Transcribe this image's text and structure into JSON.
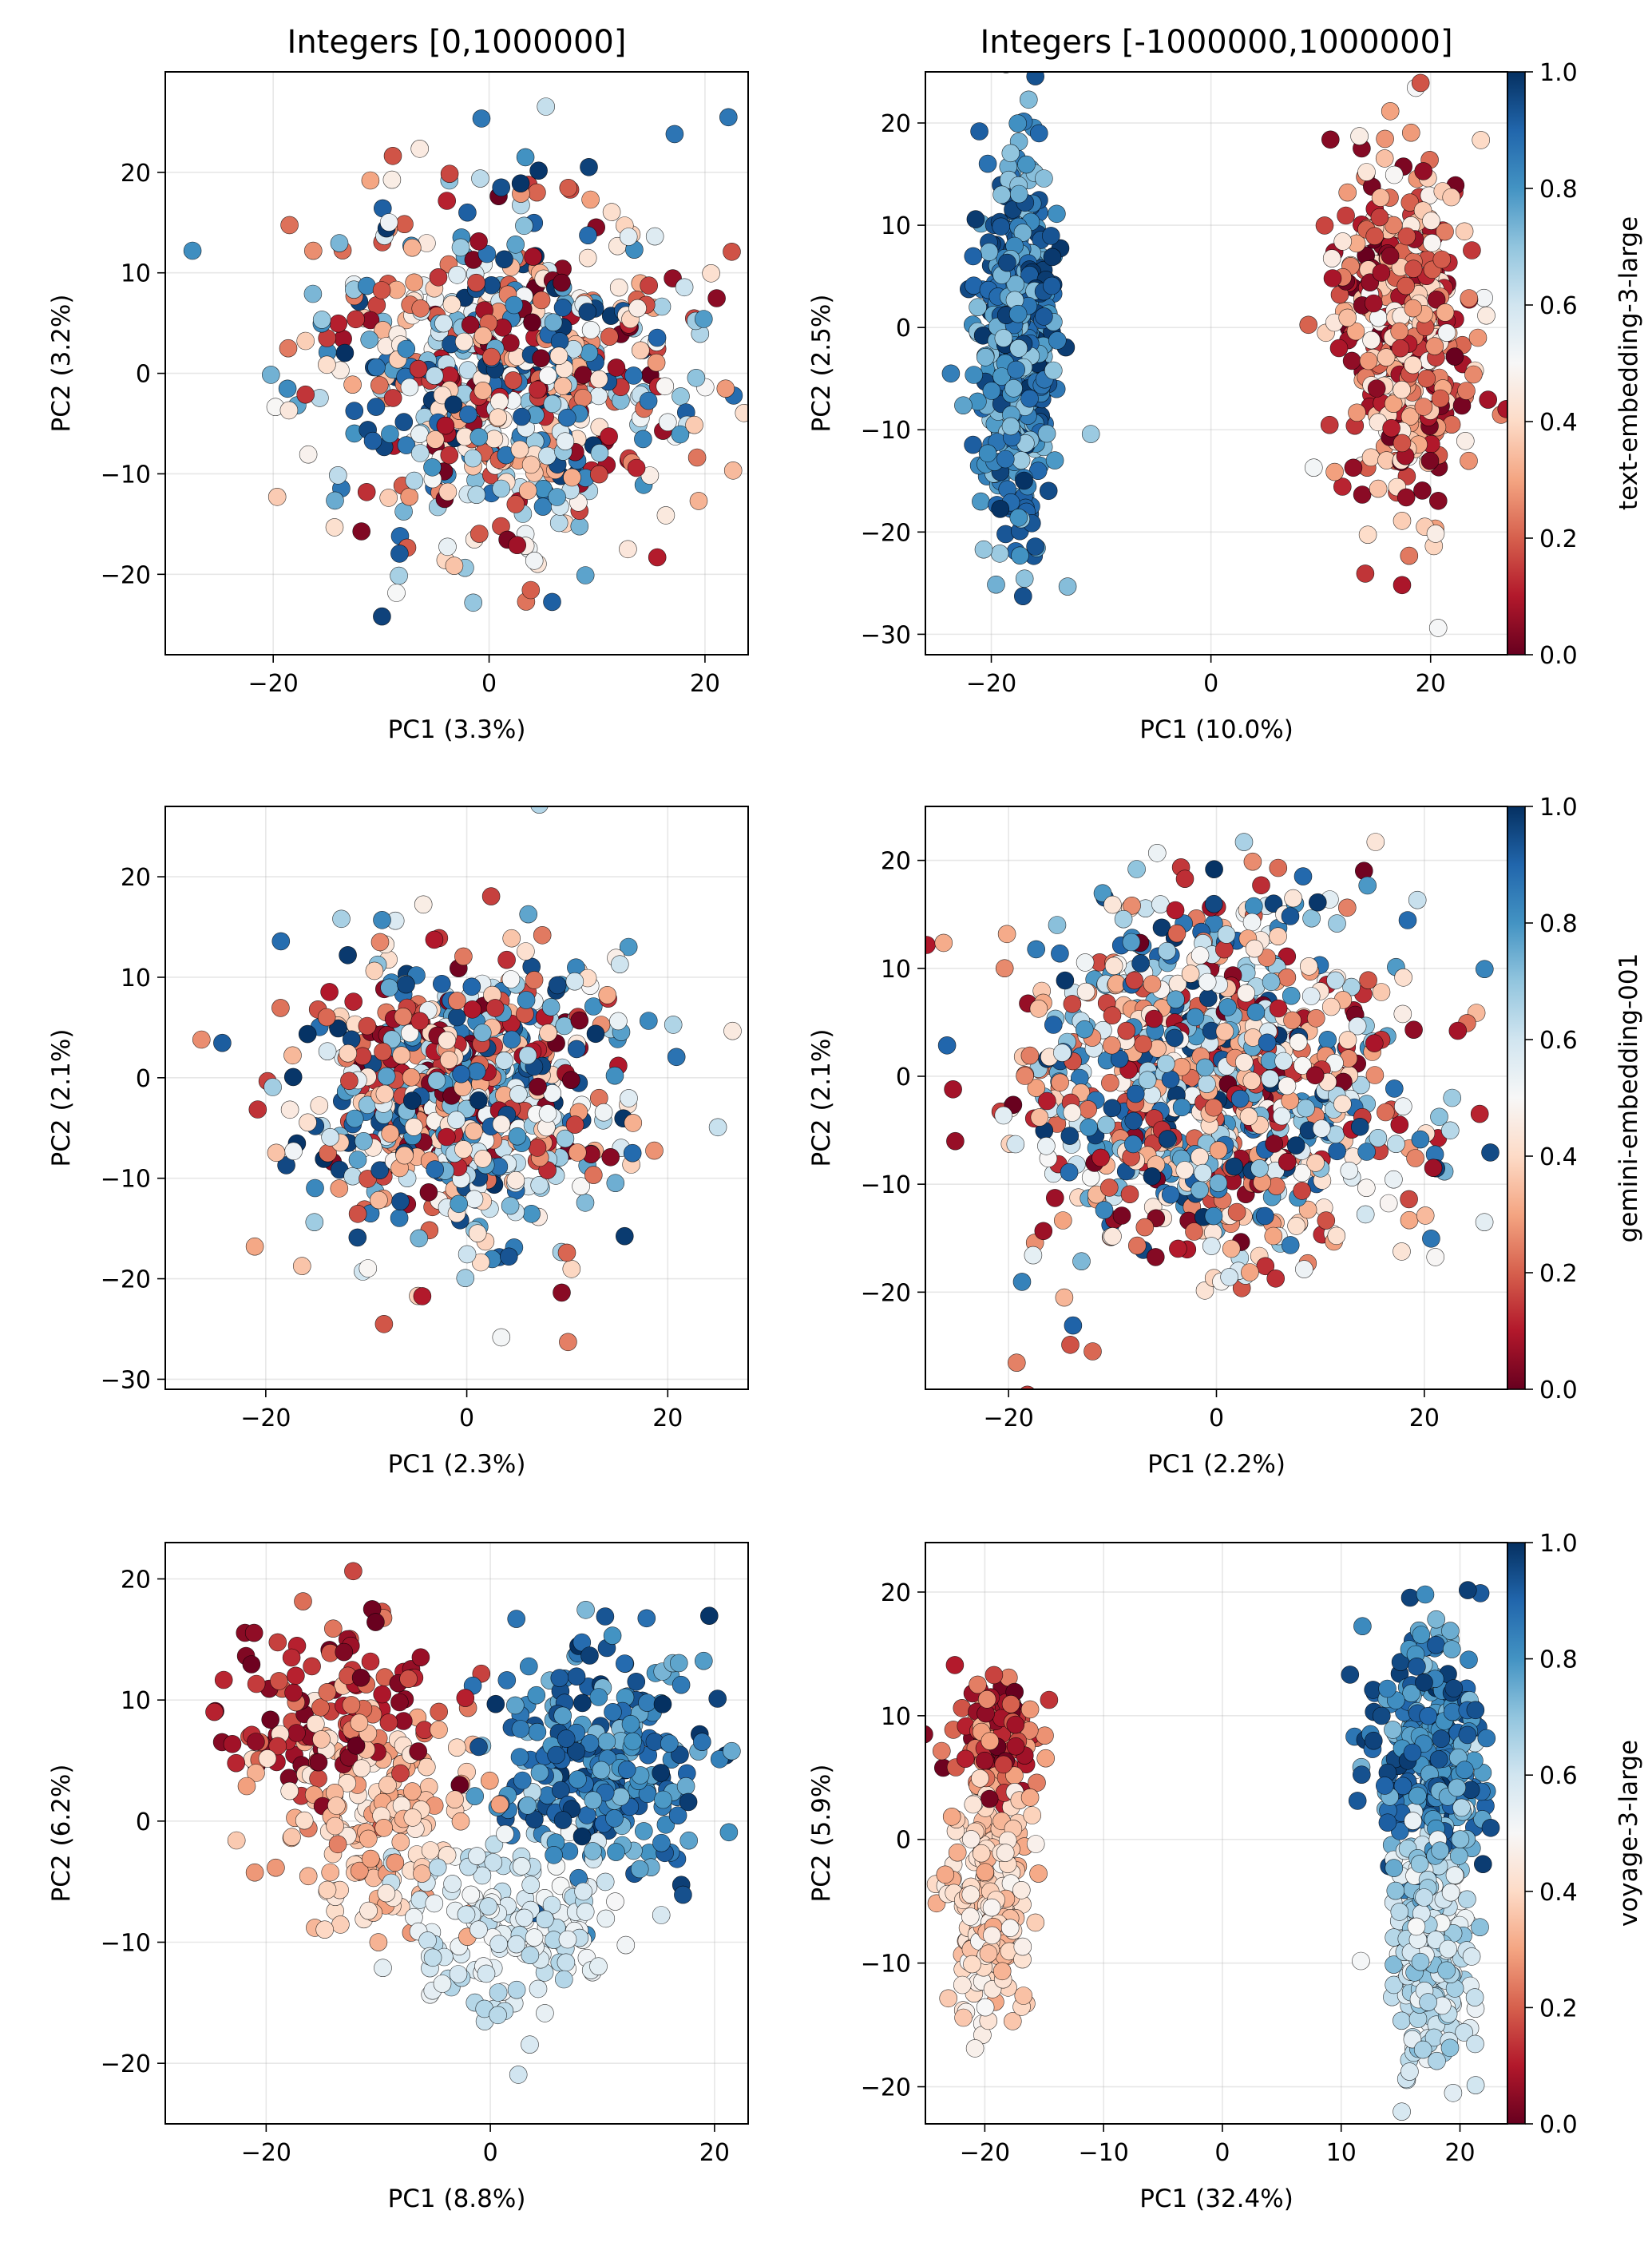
{
  "figure": {
    "background": "#ffffff"
  },
  "colormap": {
    "name": "RdBu",
    "stops": [
      "#67001f",
      "#b2182b",
      "#d6604d",
      "#f4a582",
      "#fddbc7",
      "#f7f7f7",
      "#d1e5f0",
      "#92c5de",
      "#4393c3",
      "#2166ac",
      "#053061"
    ]
  },
  "colorbar_ticks": [
    "0.0",
    "0.2",
    "0.4",
    "0.6",
    "0.8",
    "1.0"
  ],
  "chart_data": [
    {
      "type": "scatter",
      "row": 0,
      "col": 0,
      "title": "Integers [0,1000000]",
      "xlabel": "PC1 (3.3%)",
      "ylabel": "PC2 (3.2%)",
      "xlim": [
        -30,
        24
      ],
      "ylim": [
        -28,
        30
      ],
      "xticks": [
        -20,
        0,
        20
      ],
      "yticks": [
        -20,
        -10,
        0,
        10,
        20
      ],
      "grid": true,
      "colorbar": false,
      "sample_count": 650,
      "clusters": [
        {
          "cx": 2,
          "cy": 0,
          "sx": 8.5,
          "sy": 8.5,
          "c0": 0.0,
          "c1": 1.0,
          "count": 650,
          "seed": 11
        }
      ]
    },
    {
      "type": "scatter",
      "row": 0,
      "col": 1,
      "title": "Integers [-1000000,1000000]",
      "xlabel": "PC1 (10.0%)",
      "ylabel": "PC2 (2.5%)",
      "xlim": [
        -26,
        27
      ],
      "ylim": [
        -32,
        25
      ],
      "xticks": [
        -20,
        0,
        20
      ],
      "yticks": [
        -30,
        -20,
        -10,
        0,
        10,
        20
      ],
      "grid": true,
      "colorbar": true,
      "colorbar_label": "text-embedding-3-large",
      "sample_count": 900,
      "clusters": [
        {
          "cx": -17.5,
          "cy": -2,
          "sx": 1.8,
          "sy": 9.5,
          "c0": 0.68,
          "c1": 1.0,
          "count": 450,
          "seed": 21
        },
        {
          "cx": 17.5,
          "cy": 0,
          "sx": 3.0,
          "sy": 8.5,
          "c0": 0.0,
          "c1": 0.52,
          "count": 450,
          "seed": 22
        }
      ]
    },
    {
      "type": "scatter",
      "row": 1,
      "col": 0,
      "title": "",
      "xlabel": "PC1 (2.3%)",
      "ylabel": "PC2 (2.1%)",
      "xlim": [
        -30,
        28
      ],
      "ylim": [
        -31,
        27
      ],
      "xticks": [
        -20,
        0,
        20
      ],
      "yticks": [
        -30,
        -20,
        -10,
        0,
        10,
        20
      ],
      "grid": true,
      "colorbar": false,
      "sample_count": 650,
      "clusters": [
        {
          "cx": 0,
          "cy": -2,
          "sx": 8.0,
          "sy": 7.5,
          "c0": 0.0,
          "c1": 1.0,
          "count": 650,
          "seed": 31
        }
      ]
    },
    {
      "type": "scatter",
      "row": 1,
      "col": 1,
      "title": "",
      "xlabel": "PC1 (2.2%)",
      "ylabel": "PC2 (2.1%)",
      "xlim": [
        -28,
        28
      ],
      "ylim": [
        -29,
        25
      ],
      "xticks": [
        -20,
        0,
        20
      ],
      "yticks": [
        -20,
        -10,
        0,
        10,
        20
      ],
      "grid": true,
      "colorbar": true,
      "colorbar_label": "gemini-embedding-001",
      "sample_count": 900,
      "clusters": [
        {
          "cx": 0,
          "cy": -1,
          "sx": 9.0,
          "sy": 8.5,
          "c0": 0.0,
          "c1": 1.0,
          "count": 900,
          "seed": 41
        }
      ]
    },
    {
      "type": "scatter",
      "row": 2,
      "col": 0,
      "title": "",
      "xlabel": "PC1 (8.8%)",
      "ylabel": "PC2 (6.2%)",
      "xlim": [
        -29,
        23
      ],
      "ylim": [
        -25,
        23
      ],
      "xticks": [
        -20,
        0,
        20
      ],
      "yticks": [
        -20,
        -10,
        0,
        10,
        20
      ],
      "grid": true,
      "colorbar": false,
      "sample_count": 700,
      "clusters": [
        {
          "cx": -15,
          "cy": 9,
          "sx": 5.0,
          "sy": 4.0,
          "c0": 0.0,
          "c1": 0.25,
          "count": 120,
          "seed": 51
        },
        {
          "cx": -10,
          "cy": 1,
          "sx": 4.5,
          "sy": 5.0,
          "c0": 0.28,
          "c1": 0.45,
          "count": 170,
          "seed": 52
        },
        {
          "cx": 2,
          "cy": -9,
          "sx": 5.0,
          "sy": 3.5,
          "c0": 0.5,
          "c1": 0.65,
          "count": 160,
          "seed": 53
        },
        {
          "cx": 10,
          "cy": 5,
          "sx": 5.0,
          "sy": 4.5,
          "c0": 0.72,
          "c1": 1.0,
          "count": 250,
          "seed": 54
        }
      ]
    },
    {
      "type": "scatter",
      "row": 2,
      "col": 1,
      "title": "",
      "xlabel": "PC1 (32.4%)",
      "ylabel": "PC2 (5.9%)",
      "xlim": [
        -25,
        24
      ],
      "ylim": [
        -23,
        24
      ],
      "xticks": [
        -20,
        -10,
        0,
        10,
        20
      ],
      "yticks": [
        -20,
        -10,
        0,
        10,
        20
      ],
      "grid": true,
      "colorbar": true,
      "colorbar_label": "voyage-3-large",
      "sample_count": 950,
      "clusters": [
        {
          "cx": -19,
          "cy": 8,
          "sx": 1.8,
          "sy": 2.5,
          "c0": 0.0,
          "c1": 0.3,
          "count": 120,
          "seed": 61
        },
        {
          "cx": -19.5,
          "cy": -5,
          "sx": 1.5,
          "sy": 5.0,
          "c0": 0.3,
          "c1": 0.5,
          "count": 250,
          "seed": 62
        },
        {
          "cx": 17.5,
          "cy": 7,
          "sx": 2.2,
          "sy": 5.0,
          "c0": 0.72,
          "c1": 1.0,
          "count": 300,
          "seed": 63
        },
        {
          "cx": 17.5,
          "cy": -8,
          "sx": 1.6,
          "sy": 6.0,
          "c0": 0.5,
          "c1": 0.72,
          "count": 280,
          "seed": 64
        }
      ]
    }
  ]
}
